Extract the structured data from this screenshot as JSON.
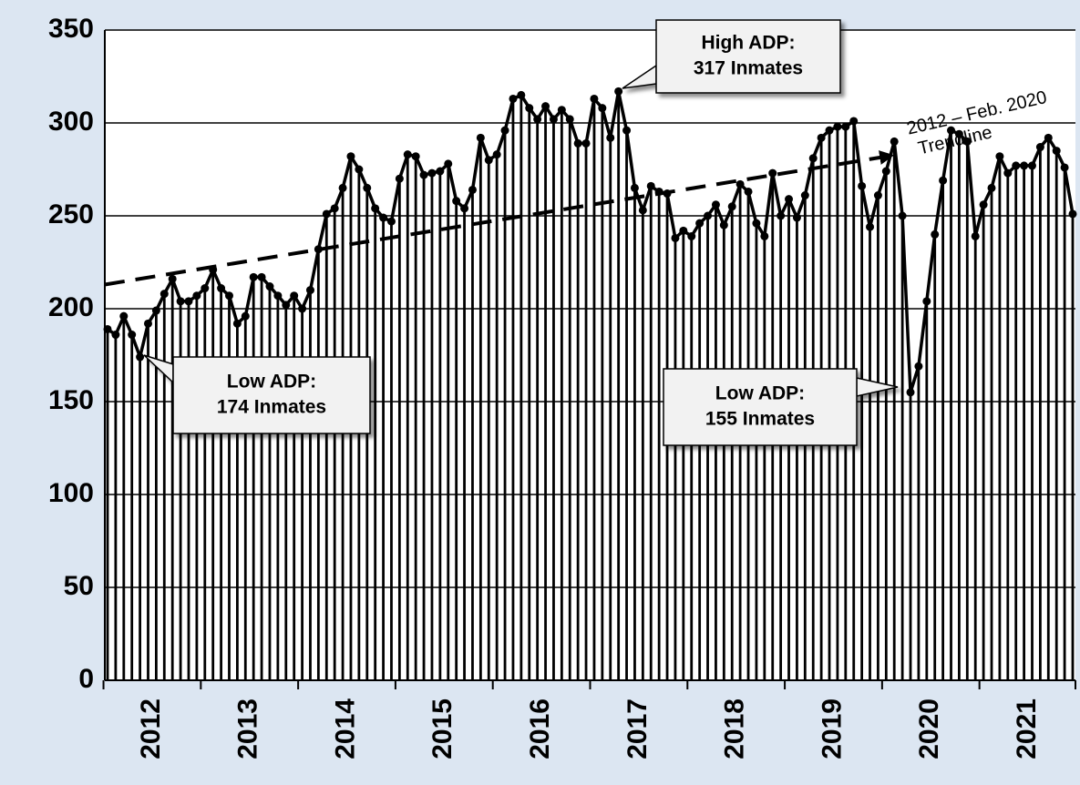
{
  "chart_data": {
    "type": "bar-line",
    "categories": [
      null,
      null,
      null,
      null,
      null,
      null,
      "2012",
      null,
      null,
      null,
      null,
      null,
      null,
      null,
      null,
      null,
      null,
      null,
      "2013",
      null,
      null,
      null,
      null,
      null,
      null,
      null,
      null,
      null,
      null,
      null,
      "2014",
      null,
      null,
      null,
      null,
      null,
      null,
      null,
      null,
      null,
      null,
      null,
      "2015",
      null,
      null,
      null,
      null,
      null,
      null,
      null,
      null,
      null,
      null,
      null,
      "2016",
      null,
      null,
      null,
      null,
      null,
      null,
      null,
      null,
      null,
      null,
      null,
      "2017",
      null,
      null,
      null,
      null,
      null,
      null,
      null,
      null,
      null,
      null,
      null,
      "2018",
      null,
      null,
      null,
      null,
      null,
      null,
      null,
      null,
      null,
      null,
      null,
      "2019",
      null,
      null,
      null,
      null,
      null,
      null,
      null,
      null,
      null,
      null,
      null,
      "2020",
      null,
      null,
      null,
      null,
      null,
      null,
      null,
      null,
      null,
      null,
      null,
      "2021",
      null,
      null,
      null,
      null,
      null
    ],
    "values": [
      189,
      186,
      196,
      186,
      174,
      192,
      199,
      208,
      216,
      204,
      204,
      207,
      211,
      221,
      211,
      207,
      192,
      196,
      217,
      217,
      212,
      207,
      202,
      207,
      200,
      210,
      232,
      251,
      254,
      265,
      282,
      275,
      265,
      254,
      249,
      247,
      270,
      283,
      282,
      272,
      273,
      274,
      278,
      258,
      254,
      264,
      292,
      280,
      283,
      296,
      313,
      315,
      308,
      302,
      309,
      302,
      307,
      302,
      289,
      289,
      313,
      308,
      292,
      317,
      296,
      265,
      253,
      266,
      263,
      262,
      238,
      242,
      239,
      246,
      250,
      256,
      245,
      255,
      267,
      263,
      246,
      239,
      273,
      250,
      259,
      249,
      261,
      281,
      292,
      296,
      298,
      298,
      301,
      266,
      244,
      261,
      274,
      290,
      250,
      155,
      169,
      204,
      240,
      269,
      296,
      294,
      290,
      239,
      256,
      265,
      282,
      273,
      277,
      277,
      277,
      287,
      292,
      285,
      276,
      251
    ],
    "color": "#000000",
    "ylim": [
      0,
      350
    ],
    "yticks": [
      0,
      50,
      100,
      150,
      200,
      250,
      300,
      350
    ],
    "grid": true,
    "trendline": {
      "lines": [
        "2012 – Feb. 2020",
        "Trendline"
      ],
      "values": [
        213,
        283
      ]
    },
    "annotations": [
      {
        "lines": [
          "High ADP:",
          "317 Inmates"
        ]
      },
      {
        "lines": [
          "Low ADP:",
          "174 Inmates"
        ]
      },
      {
        "lines": [
          "Low ADP:",
          "155 Inmates"
        ]
      }
    ]
  }
}
